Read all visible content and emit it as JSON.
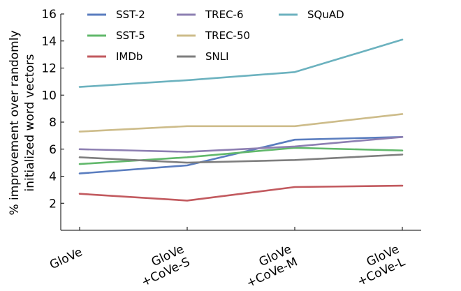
{
  "chart_data": {
    "type": "line",
    "title": "",
    "xlabel": "",
    "ylabel_lines": [
      "% improvement over randomly",
      "initialized word vectors"
    ],
    "categories": [
      [
        "GloVe"
      ],
      [
        "GloVe",
        "+CoVe-S"
      ],
      [
        "GloVe",
        "+CoVe-M"
      ],
      [
        "GloVe",
        "+CoVe-L"
      ]
    ],
    "ylim": [
      0,
      16
    ],
    "yticks": [
      2,
      4,
      6,
      8,
      10,
      12,
      14,
      16
    ],
    "grid": false,
    "legend_position": "top",
    "series": [
      {
        "name": "SST-2",
        "color": "#5a7dbf",
        "values": [
          4.2,
          4.8,
          6.7,
          6.9
        ]
      },
      {
        "name": "SST-5",
        "color": "#61b86b",
        "values": [
          4.9,
          5.4,
          6.1,
          5.9
        ]
      },
      {
        "name": "IMDb",
        "color": "#c25a5f",
        "values": [
          2.7,
          2.2,
          3.2,
          3.3
        ]
      },
      {
        "name": "TREC-6",
        "color": "#8d7fb2",
        "values": [
          6.0,
          5.8,
          6.2,
          6.9
        ]
      },
      {
        "name": "TREC-50",
        "color": "#cdbc8a",
        "values": [
          7.3,
          7.7,
          7.7,
          8.6
        ]
      },
      {
        "name": "SNLI",
        "color": "#7e7e7e",
        "values": [
          5.4,
          5.0,
          5.2,
          5.6
        ]
      },
      {
        "name": "SQuAD",
        "color": "#6cb2bf",
        "values": [
          10.6,
          11.1,
          11.7,
          14.1
        ]
      }
    ]
  }
}
